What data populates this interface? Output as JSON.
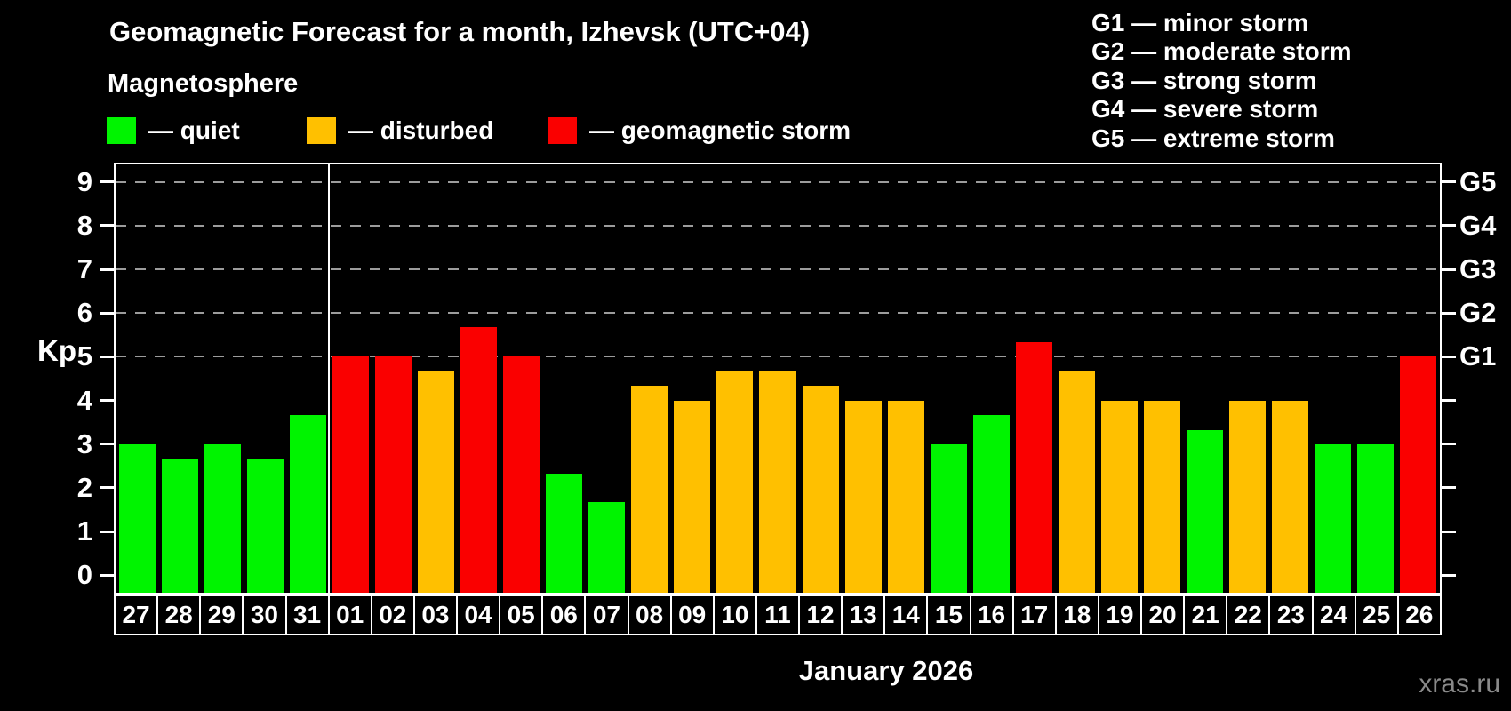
{
  "header": {
    "title": "Geomagnetic Forecast for a month, Izhevsk (UTC+04)",
    "subtitle": "Magnetosphere"
  },
  "legend": {
    "items": [
      {
        "status": "quiet",
        "label": "— quiet"
      },
      {
        "status": "disturbed",
        "label": "— disturbed"
      },
      {
        "status": "storm",
        "label": "— geomagnetic storm"
      }
    ]
  },
  "g_legend": [
    {
      "label": "G1 — minor storm"
    },
    {
      "label": "G2 — moderate storm"
    },
    {
      "label": "G3 — strong storm"
    },
    {
      "label": "G4 — severe storm"
    },
    {
      "label": "G5 — extreme storm"
    }
  ],
  "chart_data": {
    "type": "bar",
    "title": "Geomagnetic Forecast for a month, Izhevsk (UTC+04)",
    "ylabel": "Kp",
    "xlabel": "January 2026",
    "ylim": [
      -0.4,
      9.4
    ],
    "yticks": [
      0,
      1,
      2,
      3,
      4,
      5,
      6,
      7,
      8,
      9
    ],
    "gridlines_at": [
      5,
      6,
      7,
      8,
      9
    ],
    "grid": "dashed",
    "right_axis_ticks": [
      {
        "label": "G1",
        "kp": 5
      },
      {
        "label": "G2",
        "kp": 6
      },
      {
        "label": "G3",
        "kp": 7
      },
      {
        "label": "G4",
        "kp": 8
      },
      {
        "label": "G5",
        "kp": 9
      }
    ],
    "month_separator_after_index": 4,
    "categories": [
      "27",
      "28",
      "29",
      "30",
      "31",
      "01",
      "02",
      "03",
      "04",
      "05",
      "06",
      "07",
      "08",
      "09",
      "10",
      "11",
      "12",
      "13",
      "14",
      "15",
      "16",
      "17",
      "18",
      "19",
      "20",
      "21",
      "22",
      "23",
      "24",
      "25",
      "26"
    ],
    "values": [
      3,
      2.67,
      3,
      2.67,
      3.67,
      5,
      5,
      4.67,
      5.67,
      5,
      2.33,
      1.67,
      4.33,
      4,
      4.67,
      4.67,
      4.33,
      4,
      4,
      3,
      3.67,
      5.33,
      4.67,
      4,
      4,
      3.33,
      4,
      4,
      3,
      3,
      5
    ],
    "statuses": [
      "quiet",
      "quiet",
      "quiet",
      "quiet",
      "quiet",
      "storm",
      "storm",
      "disturbed",
      "storm",
      "storm",
      "quiet",
      "quiet",
      "disturbed",
      "disturbed",
      "disturbed",
      "disturbed",
      "disturbed",
      "disturbed",
      "disturbed",
      "quiet",
      "quiet",
      "storm",
      "disturbed",
      "disturbed",
      "disturbed",
      "quiet",
      "disturbed",
      "disturbed",
      "quiet",
      "quiet",
      "storm"
    ],
    "colors": {
      "quiet": "#00f400",
      "disturbed": "#ffc000",
      "storm": "#fa0000",
      "gridline": "#9c9c9c",
      "frame": "#ffffff",
      "background": "#000000"
    }
  },
  "footer": {
    "xaxis_title": "January 2026",
    "watermark": "xras.ru"
  }
}
